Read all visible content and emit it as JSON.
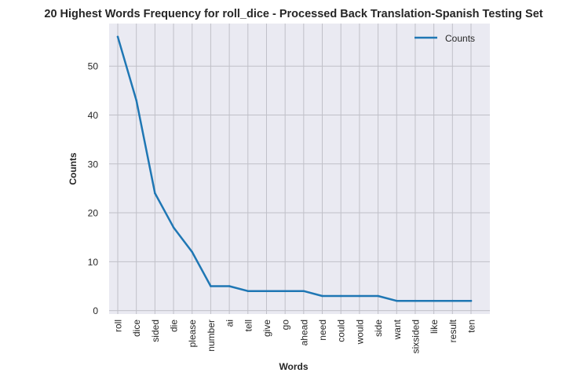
{
  "chart_data": {
    "type": "line",
    "title": "20 Highest Words Frequency for roll_dice - Processed Back Translation-Spanish Testing Set",
    "xlabel": "Words",
    "ylabel": "Counts",
    "categories": [
      "roll",
      "dice",
      "sided",
      "die",
      "please",
      "number",
      "ai",
      "tell",
      "give",
      "go",
      "ahead",
      "need",
      "could",
      "would",
      "side",
      "want",
      "sixsided",
      "like",
      "result",
      "ten"
    ],
    "series": [
      {
        "name": "Counts",
        "color": "#1f77b4",
        "values": [
          56,
          43,
          24,
          17,
          12,
          5,
          5,
          4,
          4,
          4,
          4,
          3,
          3,
          3,
          3,
          2,
          2,
          2,
          2,
          2
        ]
      }
    ],
    "ylim": [
      -0.7,
      58.7
    ],
    "yticks": [
      "0",
      "10",
      "20",
      "30",
      "40",
      "50"
    ],
    "grid": true,
    "legend": "top-right",
    "background": "#eaeaf2",
    "grid_color": "#c0c0c8"
  }
}
